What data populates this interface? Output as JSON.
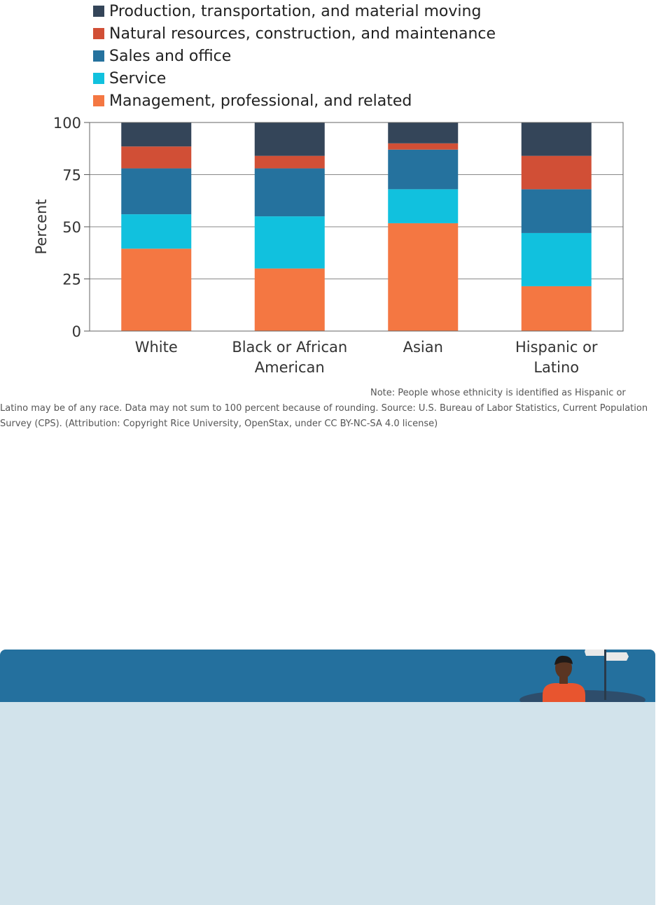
{
  "chart_data": {
    "type": "bar",
    "stacked": true,
    "categories": [
      "White",
      "Black or African American",
      "Asian",
      "Hispanic or Latino"
    ],
    "category_lines": [
      [
        "White"
      ],
      [
        "Black or African",
        "American"
      ],
      [
        "Asian"
      ],
      [
        "Hispanic or",
        "Latino"
      ]
    ],
    "series": [
      {
        "name": "Management, professional, and related",
        "color": "#f47742",
        "values": [
          39.5,
          30,
          51.7,
          21.5
        ]
      },
      {
        "name": "Service",
        "color": "#11c1de",
        "values": [
          16.5,
          25,
          16.3,
          25.5
        ]
      },
      {
        "name": "Sales and office",
        "color": "#25729e",
        "values": [
          22,
          23,
          19,
          21
        ]
      },
      {
        "name": "Natural resources, construction, and maintenance",
        "color": "#d14f36",
        "values": [
          10.5,
          6,
          3,
          16
        ]
      },
      {
        "name": "Production, transportation, and material moving",
        "color": "#344559",
        "values": [
          11.5,
          16,
          10,
          16
        ]
      }
    ],
    "legend_order": [
      4,
      3,
      2,
      1,
      0
    ],
    "yticks": [
      0,
      25,
      50,
      75,
      100
    ],
    "ylim": [
      0,
      100
    ],
    "ylabel": "Percent",
    "xlabel": "",
    "grid": true,
    "legend_position": "top-left"
  },
  "note": {
    "lines": [
      "Note: People whose ethnicity is identified as Hispanic or",
      "Latino may be of any race. Data may not sum to 100 percent because of rounding. Source: U.S. Bureau of Labor Statistics, Current Population",
      "Survey (CPS). (Attribution: Copyright Rice University, OpenStax, under CC BY-NC-SA 4.0 license)"
    ]
  },
  "callout": {
    "header_color": "#24709e",
    "body_color": "#d2e3eb",
    "illustration": "person-at-signpost-icon"
  }
}
